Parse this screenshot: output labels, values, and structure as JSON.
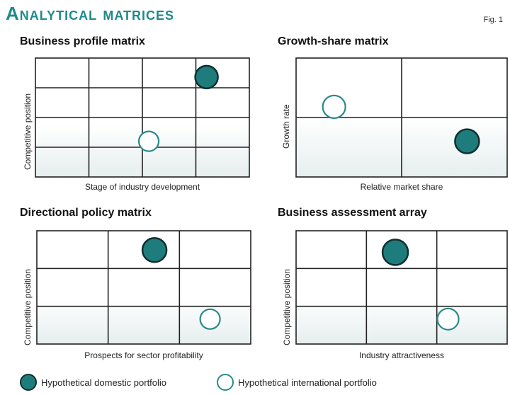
{
  "header": {
    "title": "Analytical matrices",
    "fig_label": "Fig. 1"
  },
  "colors": {
    "accent": "#1f8a8a",
    "domestic_fill": "#1e7d7c",
    "domestic_stroke": "#0f2f2f",
    "international_fill": "#ffffff",
    "international_stroke": "#2a8a8a",
    "grid": "#222222",
    "shade_bottom": "#e6eeee"
  },
  "panels": [
    {
      "title": "Business profile matrix",
      "xlabel": "Stage of industry development",
      "ylabel": "Competitive position",
      "cols": 4,
      "rows": 4
    },
    {
      "title": "Growth-share matrix",
      "xlabel": "Relative market share",
      "ylabel": "Growth rate",
      "cols": 2,
      "rows": 2
    },
    {
      "title": "Directional policy matrix",
      "xlabel": "Prospects for sector profitability",
      "ylabel": "Competitive position",
      "cols": 3,
      "rows": 3
    },
    {
      "title": "Business assessment array",
      "xlabel": "Industry attractiveness",
      "ylabel": "Competitive position",
      "cols": 3,
      "rows": 3
    }
  ],
  "legend": {
    "domestic": "Hypothetical domestic portfolio",
    "international": "Hypothetical international portfolio"
  }
}
